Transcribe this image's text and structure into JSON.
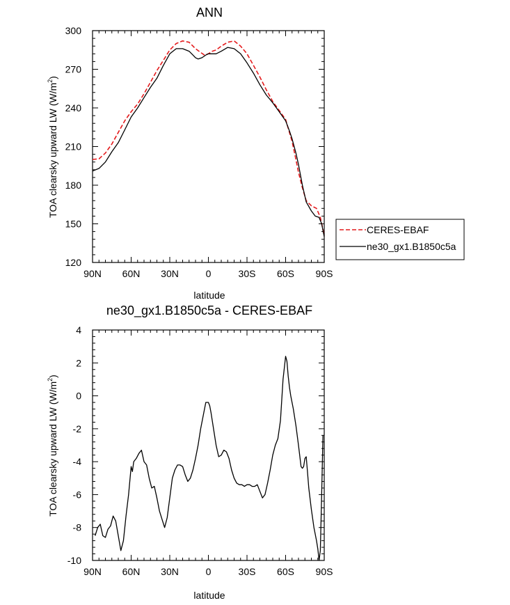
{
  "chart_data": [
    {
      "type": "line",
      "title": "ANN",
      "xlabel": "latitude",
      "ylabel": "TOA clearsky upward LW (W/m",
      "ylabel_sup": "2",
      "ylabel_close": ")",
      "xlim": [
        90,
        -90
      ],
      "ylim": [
        120,
        300
      ],
      "xticks": [
        {
          "value": 90,
          "label": "90N"
        },
        {
          "value": 60,
          "label": "60N"
        },
        {
          "value": 30,
          "label": "30N"
        },
        {
          "value": 0,
          "label": "0"
        },
        {
          "value": -30,
          "label": "30S"
        },
        {
          "value": -60,
          "label": "60S"
        },
        {
          "value": -90,
          "label": "90S"
        }
      ],
      "yticks": [
        120,
        150,
        180,
        210,
        240,
        270,
        300
      ],
      "legend_position": "right",
      "series": [
        {
          "name": "CERES-EBAF",
          "color": "#e41a1c",
          "dash": "dashed",
          "x": [
            90,
            85,
            80,
            75,
            70,
            65,
            60,
            55,
            50,
            45,
            40,
            35,
            30,
            25,
            20,
            15,
            12,
            10,
            6,
            3,
            0,
            -3,
            -6,
            -10,
            -15,
            -20,
            -25,
            -30,
            -35,
            -40,
            -45,
            -50,
            -55,
            -60,
            -65,
            -68,
            -70,
            -73,
            -76,
            -80,
            -84,
            -87,
            -90
          ],
          "y": [
            200,
            200.5,
            205,
            212,
            221,
            230,
            237,
            243,
            251,
            260,
            269,
            277,
            285,
            290,
            292,
            291,
            288,
            286,
            283,
            281,
            282,
            284,
            285,
            288,
            291,
            292,
            288,
            282,
            273,
            264,
            254,
            245,
            238,
            231,
            214,
            200,
            190,
            178,
            168,
            164,
            162,
            155,
            141
          ]
        },
        {
          "name": "ne30_gx1.B1850c5a",
          "color": "#000000",
          "dash": "solid",
          "x": [
            90,
            85,
            80,
            75,
            70,
            65,
            60,
            55,
            50,
            45,
            40,
            35,
            30,
            25,
            20,
            15,
            12,
            10,
            8,
            5,
            2,
            0,
            -3,
            -6,
            -10,
            -15,
            -20,
            -25,
            -30,
            -35,
            -40,
            -45,
            -50,
            -55,
            -60,
            -63,
            -65,
            -68,
            -70,
            -73,
            -76,
            -80,
            -83,
            -86,
            -88,
            -90
          ],
          "y": [
            191,
            193,
            198,
            206,
            213,
            223,
            233,
            240,
            248,
            256,
            263,
            273,
            282,
            286,
            286,
            284,
            281,
            279,
            278,
            279,
            281,
            282,
            282,
            282,
            284,
            287,
            286,
            282,
            275,
            267,
            258,
            250,
            244,
            237,
            230,
            222,
            216,
            205,
            196,
            180,
            167,
            160,
            156,
            155,
            150,
            140
          ]
        }
      ]
    },
    {
      "type": "line",
      "title": "ne30_gx1.B1850c5a - CERES-EBAF",
      "xlabel": "latitude",
      "ylabel": "TOA clearsky upward LW (W/m",
      "ylabel_sup": "2",
      "ylabel_close": ")",
      "xlim": [
        90,
        -90
      ],
      "ylim": [
        -10,
        4
      ],
      "xticks": [
        {
          "value": 90,
          "label": "90N"
        },
        {
          "value": 60,
          "label": "60N"
        },
        {
          "value": 30,
          "label": "30N"
        },
        {
          "value": 0,
          "label": "0"
        },
        {
          "value": -30,
          "label": "30S"
        },
        {
          "value": -60,
          "label": "60S"
        },
        {
          "value": -90,
          "label": "90S"
        }
      ],
      "yticks": [
        -10,
        -8,
        -6,
        -4,
        -2,
        0,
        2,
        4
      ],
      "series": [
        {
          "color": "#000000",
          "dash": "solid",
          "x": [
            88,
            86,
            84,
            82,
            80,
            78,
            76,
            74,
            72,
            70,
            68,
            66,
            64,
            62,
            60,
            59,
            58,
            56,
            54,
            52,
            50,
            48,
            46,
            44,
            42,
            40,
            38,
            36,
            34,
            32,
            30,
            28,
            26,
            24,
            22,
            20,
            18,
            16,
            14,
            12,
            10,
            8,
            6,
            4,
            2,
            0,
            -1,
            -2,
            -4,
            -6,
            -8,
            -10,
            -12,
            -14,
            -16,
            -18,
            -20,
            -22,
            -24,
            -26,
            -28,
            -30,
            -32,
            -34,
            -36,
            -38,
            -40,
            -42,
            -44,
            -46,
            -48,
            -50,
            -52,
            -54,
            -56,
            -58,
            -60,
            -61,
            -62,
            -63,
            -64,
            -66,
            -68,
            -70,
            -72,
            -73,
            -74,
            -75,
            -76,
            -77,
            -78,
            -80,
            -82,
            -84,
            -85,
            -86,
            -87,
            -88,
            -89
          ],
          "y": [
            -8.5,
            -8.0,
            -7.8,
            -8.5,
            -8.6,
            -8.1,
            -7.9,
            -7.3,
            -7.6,
            -8.5,
            -9.4,
            -8.8,
            -7.3,
            -6.0,
            -4.3,
            -4.6,
            -4.0,
            -3.8,
            -3.5,
            -3.3,
            -4.0,
            -4.2,
            -5.0,
            -5.6,
            -5.5,
            -6.2,
            -7.0,
            -7.5,
            -8.0,
            -7.4,
            -6.2,
            -5.0,
            -4.5,
            -4.2,
            -4.2,
            -4.3,
            -4.8,
            -5.2,
            -5.0,
            -4.5,
            -3.8,
            -3.0,
            -2.0,
            -1.2,
            -0.4,
            -0.4,
            -0.6,
            -1.0,
            -2.0,
            -3.0,
            -3.7,
            -3.6,
            -3.3,
            -3.4,
            -3.8,
            -4.5,
            -5.0,
            -5.3,
            -5.4,
            -5.4,
            -5.5,
            -5.4,
            -5.4,
            -5.5,
            -5.5,
            -5.4,
            -5.8,
            -6.2,
            -6.0,
            -5.3,
            -4.5,
            -3.6,
            -3.0,
            -2.6,
            -1.5,
            1.0,
            2.4,
            2.1,
            1.2,
            0.5,
            0.0,
            -0.8,
            -1.8,
            -3.0,
            -4.3,
            -4.4,
            -4.3,
            -3.8,
            -3.7,
            -4.6,
            -5.6,
            -6.9,
            -8.0,
            -8.8,
            -9.3,
            -10.0,
            -9.4,
            -6.0,
            -2.4
          ]
        }
      ]
    }
  ]
}
